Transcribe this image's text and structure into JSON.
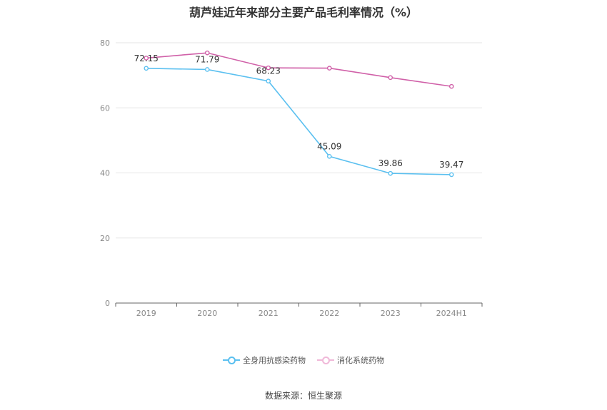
{
  "chart_data": {
    "type": "line",
    "title": "葫芦娃近年来部分主要产品毛利率情况（%）",
    "categories": [
      "2019",
      "2020",
      "2021",
      "2022",
      "2023",
      "2024H1"
    ],
    "ylim": [
      0,
      80
    ],
    "yticks": [
      "0",
      "20",
      "40",
      "60",
      "80"
    ],
    "grid": true,
    "legend_position": "bottom",
    "series": [
      {
        "name": "全身用抗感染药物",
        "color": "#5bc0f0",
        "values": [
          72.15,
          71.79,
          68.23,
          45.09,
          39.86,
          39.47
        ],
        "labels": [
          "72.15",
          "71.79",
          "68.23",
          "45.09",
          "39.86",
          "39.47"
        ]
      },
      {
        "name": "消化系统药物",
        "color": "#d060a8",
        "values": [
          75.3,
          76.9,
          72.3,
          72.2,
          69.3,
          66.6
        ]
      }
    ],
    "source": "数据来源：恒生聚源"
  }
}
